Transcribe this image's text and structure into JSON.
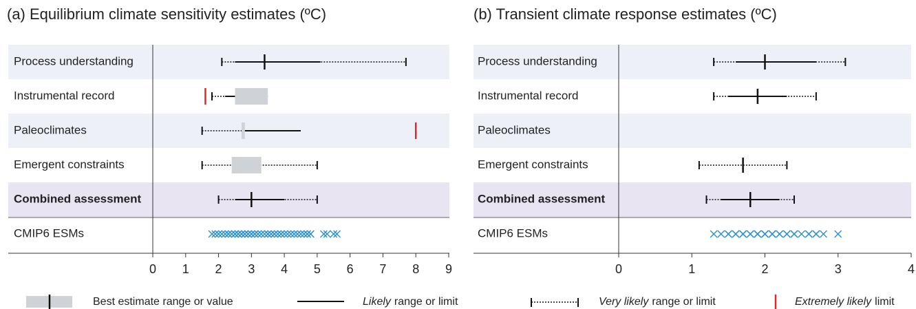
{
  "chart_data": [
    {
      "type": "range",
      "title": "(a) Equilibrium climate sensitivity  estimates (ºC)",
      "xlim": [
        0,
        9
      ],
      "xticks": [
        0,
        1,
        2,
        3,
        4,
        5,
        6,
        7,
        8,
        9
      ],
      "rows": [
        {
          "label": "Process understanding",
          "band": "#eef0f7",
          "very_likely": [
            2.1,
            7.7
          ],
          "likely": [
            2.5,
            5.1
          ],
          "best": 3.4
        },
        {
          "label": "Instrumental record",
          "very_likely": [
            1.8,
            null
          ],
          "likely": [
            2.2,
            null
          ],
          "best": [
            2.5,
            3.5
          ],
          "extremely_likely": 1.6
        },
        {
          "label": "Paleoclimates",
          "band": "#eef0f7",
          "very_likely": [
            1.5,
            null
          ],
          "likely": [
            null,
            4.5
          ],
          "best": [
            2.7,
            2.8
          ],
          "extremely_likely": 8.0
        },
        {
          "label": "Emergent constraints",
          "very_likely": [
            1.5,
            5.0
          ],
          "best": [
            2.4,
            3.3
          ]
        },
        {
          "label": "Combined assessment",
          "band": "#e9e4f1",
          "bold": true,
          "very_likely": [
            2.0,
            5.0
          ],
          "likely": [
            2.5,
            4.0
          ],
          "best": 3.0
        },
        {
          "label": "CMIP6 ESMs",
          "points": [
            1.8,
            1.9,
            2.0,
            2.1,
            2.2,
            2.3,
            2.3,
            2.4,
            2.5,
            2.5,
            2.6,
            2.6,
            2.7,
            2.7,
            2.8,
            2.8,
            2.9,
            2.9,
            3.0,
            3.0,
            3.1,
            3.1,
            3.2,
            3.3,
            3.4,
            3.5,
            3.5,
            3.6,
            3.7,
            3.7,
            3.8,
            3.9,
            3.9,
            4.0,
            4.1,
            4.2,
            4.3,
            4.4,
            4.5,
            4.6,
            4.7,
            4.7,
            4.8,
            4.8,
            5.2,
            5.3,
            5.5,
            5.6
          ]
        }
      ]
    },
    {
      "type": "range",
      "title": "(b) Transient climate response estimates (ºC)",
      "xlim": [
        0,
        4
      ],
      "xticks": [
        0,
        1,
        2,
        3,
        4
      ],
      "rows": [
        {
          "label": "Process understanding",
          "band": "#eef0f7",
          "very_likely": [
            1.3,
            3.1
          ],
          "likely": [
            1.6,
            2.7
          ],
          "best": 2.0
        },
        {
          "label": "Instrumental record",
          "very_likely": [
            1.3,
            2.7
          ],
          "likely": [
            1.5,
            2.3
          ],
          "best": 1.9
        },
        {
          "label": "Paleoclimates",
          "band": "#eef0f7"
        },
        {
          "label": "Emergent constraints",
          "very_likely": [
            1.1,
            2.3
          ],
          "best": 1.7
        },
        {
          "label": "Combined assessment",
          "band": "#e9e4f1",
          "bold": true,
          "very_likely": [
            1.2,
            2.4
          ],
          "likely": [
            1.4,
            2.2
          ],
          "best": 1.8
        },
        {
          "label": "CMIP6 ESMs",
          "points": [
            1.3,
            1.4,
            1.5,
            1.5,
            1.6,
            1.6,
            1.7,
            1.7,
            1.7,
            1.8,
            1.8,
            1.9,
            1.9,
            1.9,
            2.0,
            2.0,
            2.0,
            2.1,
            2.1,
            2.1,
            2.2,
            2.2,
            2.3,
            2.3,
            2.4,
            2.4,
            2.5,
            2.6,
            2.6,
            2.7,
            2.7,
            2.8,
            3.0
          ]
        }
      ]
    }
  ],
  "legend": [
    {
      "text": "Best estimate range or value"
    },
    {
      "em": "Likely",
      "text": "range or limit"
    },
    {
      "em": "Very likely",
      "text": "range or limit"
    },
    {
      "em": "Extremely likely",
      "text": "limit"
    }
  ],
  "colors": {
    "box": "#cfd2d6",
    "line": "#111111",
    "extreme": "#e2252b",
    "points": "#2a8fd0"
  }
}
